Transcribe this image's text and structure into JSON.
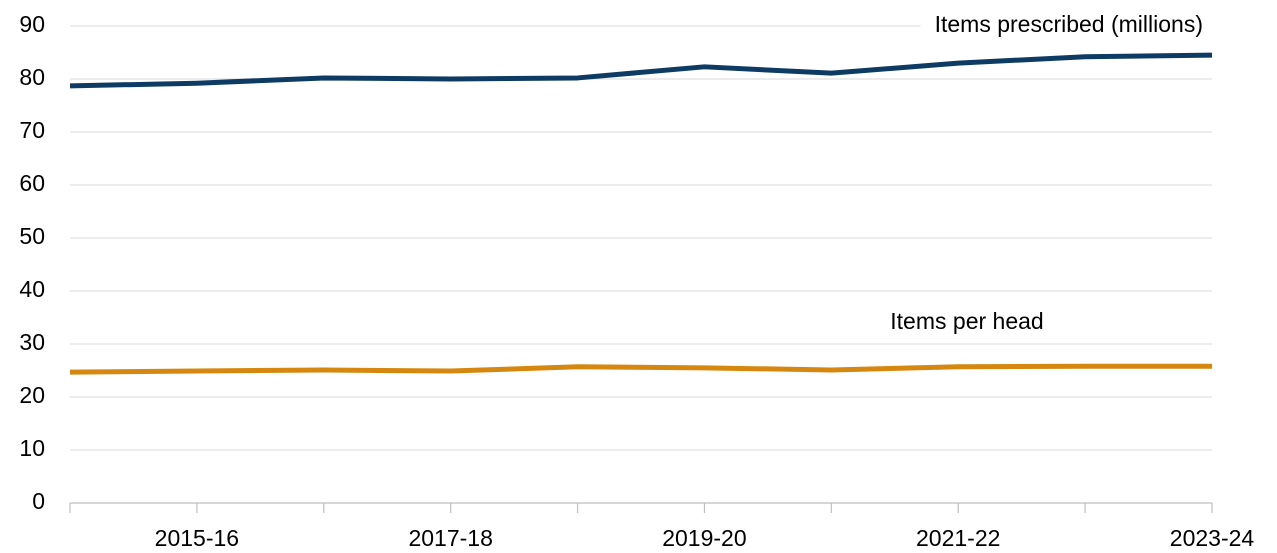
{
  "chart_data": {
    "type": "line",
    "categories": [
      null,
      "2015-16",
      null,
      "2017-18",
      null,
      "2019-20",
      null,
      "2021-22",
      null,
      "2023-24"
    ],
    "series": [
      {
        "name": "Items prescribed (millions)",
        "color": "#0e3b63",
        "values": [
          78.7,
          79.2,
          80.2,
          80.0,
          80.2,
          82.3,
          81.1,
          83.0,
          84.2,
          84.5
        ]
      },
      {
        "name": "Items per head",
        "color": "#d5870f",
        "values": [
          24.7,
          24.9,
          25.1,
          24.9,
          25.7,
          25.5,
          25.1,
          25.7,
          25.8,
          25.8
        ]
      }
    ],
    "ylim": [
      0,
      90
    ],
    "yticks": [
      0,
      10,
      20,
      30,
      40,
      50,
      60,
      70,
      80,
      90
    ],
    "grid": true
  }
}
